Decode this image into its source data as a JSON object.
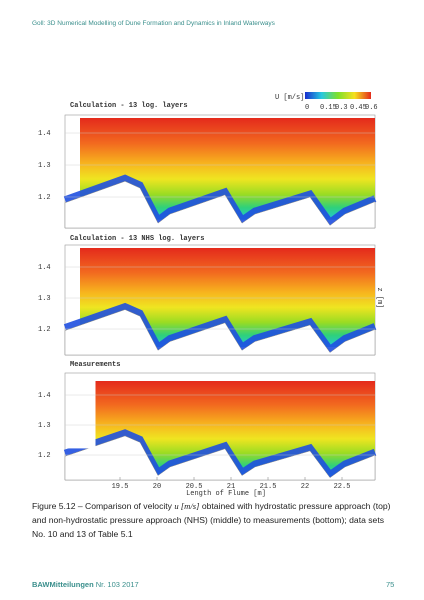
{
  "header": {
    "running_title": "Goll: 3D Numerical Modelling of Dune Formation and Dynamics in Inland Waterways"
  },
  "figure": {
    "colorbar": {
      "label": "U [m/s]",
      "ticks": [
        "0",
        "0.15",
        "0.3",
        "0.45",
        "0.6"
      ]
    },
    "panels": [
      {
        "title": "Calculation - 13 log. layers",
        "y_ticks": [
          "1.4",
          "1.3",
          "1.2"
        ]
      },
      {
        "title": "Calculation - 13 NHS log. layers",
        "y_ticks": [
          "1.4",
          "1.3",
          "1.2"
        ]
      },
      {
        "title": "Measurements",
        "y_ticks": [
          "1.4",
          "1.3",
          "1.2"
        ]
      }
    ],
    "z_label": "z [m]",
    "x_ticks": [
      "19.5",
      "20",
      "20.5",
      "21",
      "21.5",
      "22",
      "22.5"
    ],
    "x_label": "Length of Flume [m]"
  },
  "caption": {
    "label": "Figure 5.12 –",
    "text_before": "Comparison of velocity",
    "symbol": "u [m/s]",
    "text_after": "obtained with hydrostatic pressure approach (top) and non-hydrostatic pressure approach (NHS) (middle) to measurements (bottom); data sets No. 10 and 13 of Table 5.1"
  },
  "footer": {
    "journal": "BAWMitteilungen",
    "issue": "Nr. 103 2017",
    "page": "75"
  }
}
